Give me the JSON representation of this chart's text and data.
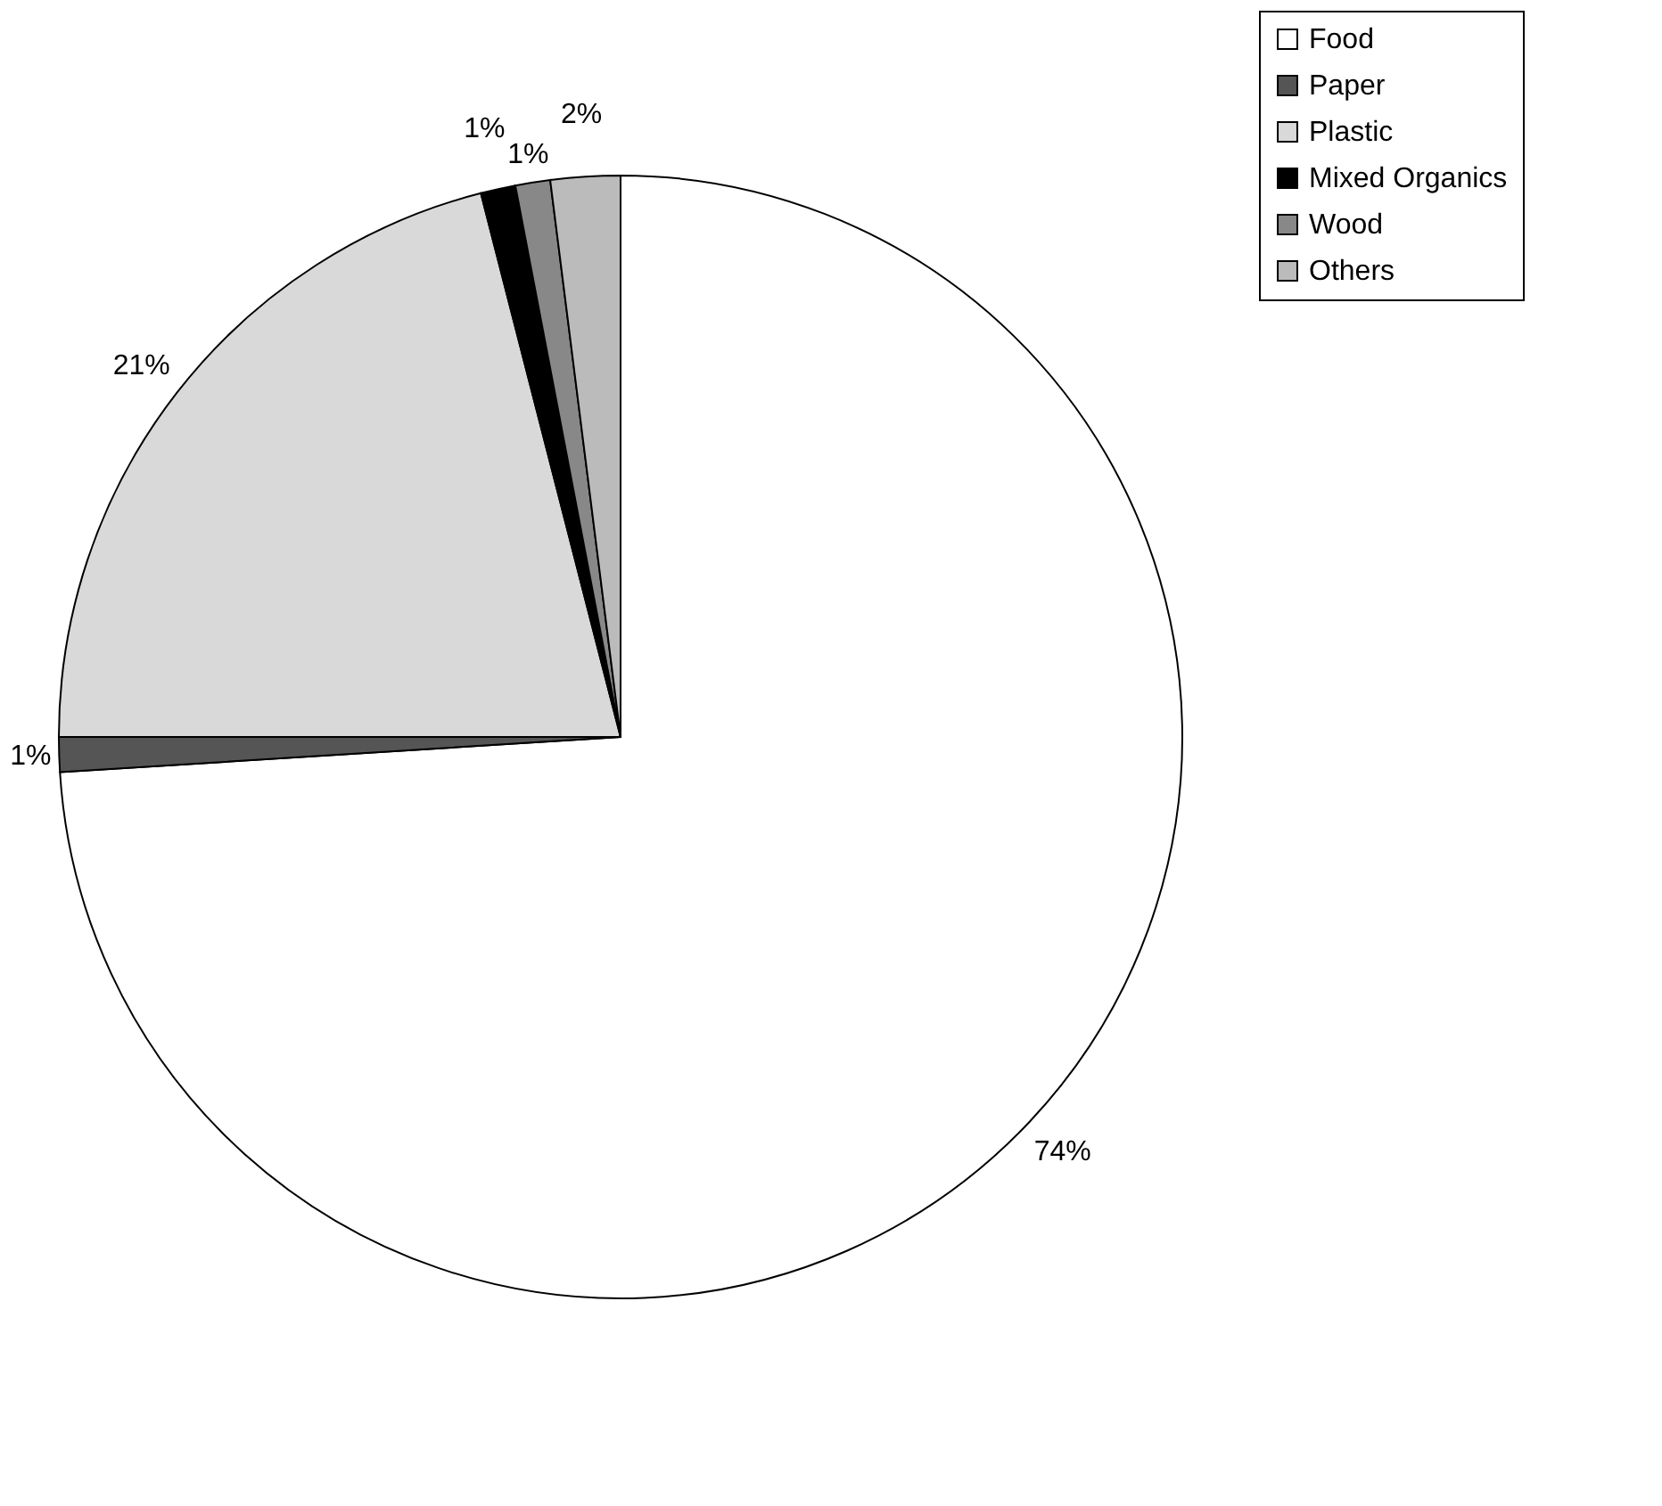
{
  "chart_data": {
    "type": "pie",
    "categories": [
      "Food",
      "Paper",
      "Plastic",
      "Mixed Organics",
      "Wood",
      "Others"
    ],
    "values": [
      74,
      1,
      21,
      1,
      1,
      2
    ],
    "value_labels": [
      "74%",
      "1%",
      "21%",
      "1%",
      "1%",
      "2%"
    ],
    "colors": [
      "#ffffff",
      "#555555",
      "#d9d9d9",
      "#000000",
      "#888888",
      "#bbbbbb"
    ],
    "legend": "top right"
  }
}
